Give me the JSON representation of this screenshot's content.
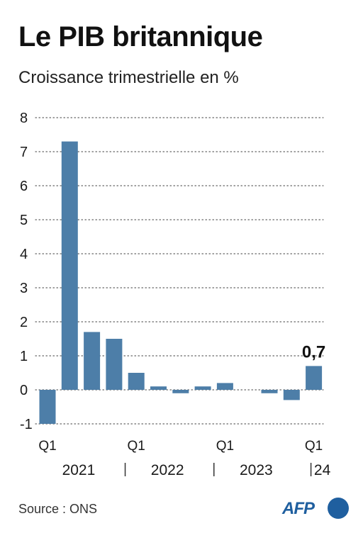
{
  "header": {
    "title": "Le PIB britannique",
    "subtitle": "Croissance trimestrielle en %"
  },
  "footer": {
    "source": "Source : ONS",
    "logo_text": "AFP"
  },
  "colors": {
    "bar": "#4d7ea8",
    "grid": "#666666",
    "text": "#1a1a1a",
    "logo": "#1f5f9f"
  },
  "chart_data": {
    "type": "bar",
    "title": "Le PIB britannique",
    "subtitle": "Croissance trimestrielle en %",
    "xlabel": "",
    "ylabel": "",
    "ylim": [
      -1,
      8
    ],
    "yticks": [
      -1,
      0,
      1,
      2,
      3,
      4,
      5,
      6,
      7,
      8
    ],
    "ytick_labels": [
      "-1",
      "0",
      "1",
      "2",
      "3",
      "4",
      "5",
      "6",
      "7",
      "8"
    ],
    "grid": true,
    "categories": [
      "2021 Q1",
      "2021 Q2",
      "2021 Q3",
      "2021 Q4",
      "2022 Q1",
      "2022 Q2",
      "2022 Q3",
      "2022 Q4",
      "2023 Q1",
      "2023 Q2",
      "2023 Q3",
      "2023 Q4",
      "2024 Q1"
    ],
    "values": [
      -1.0,
      7.3,
      1.7,
      1.5,
      0.5,
      0.1,
      -0.1,
      0.1,
      0.2,
      0.0,
      -0.1,
      -0.3,
      0.7
    ],
    "quarter_labels": [
      {
        "index": 0,
        "text": "Q1"
      },
      {
        "index": 4,
        "text": "Q1"
      },
      {
        "index": 8,
        "text": "Q1"
      },
      {
        "index": 12,
        "text": "Q1"
      }
    ],
    "year_labels": [
      {
        "from": 0,
        "to": 3,
        "text": "2021"
      },
      {
        "from": 4,
        "to": 7,
        "text": "2022"
      },
      {
        "from": 8,
        "to": 11,
        "text": "2023"
      },
      {
        "from": 12,
        "to": 12,
        "text": "24"
      }
    ],
    "annotations": [
      {
        "index": 12,
        "text": "0,7"
      }
    ]
  }
}
